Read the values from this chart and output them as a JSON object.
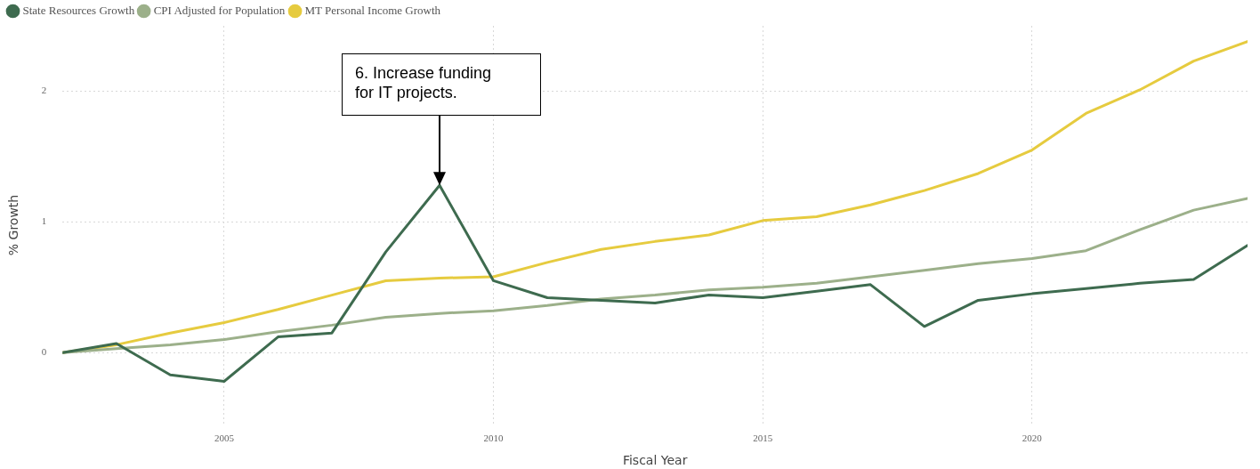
{
  "chart_data": {
    "type": "line",
    "xlabel": "Fiscal Year",
    "ylabel": "% Growth",
    "x": [
      2002,
      2003,
      2004,
      2005,
      2006,
      2007,
      2008,
      2009,
      2010,
      2011,
      2012,
      2013,
      2014,
      2015,
      2016,
      2017,
      2018,
      2019,
      2020,
      2021,
      2022,
      2023,
      2024
    ],
    "series": [
      {
        "name": "State Resources Growth",
        "color": "#3e6b4f",
        "values": [
          0,
          0.07,
          -0.17,
          -0.22,
          0.12,
          0.15,
          0.77,
          1.28,
          0.55,
          0.42,
          0.4,
          0.38,
          0.44,
          0.42,
          0.47,
          0.52,
          0.2,
          0.4,
          0.45,
          0.49,
          0.53,
          0.56,
          0.82
        ]
      },
      {
        "name": "CPI Adjusted for Population",
        "color": "#9cb08a",
        "values": [
          0,
          0.03,
          0.06,
          0.1,
          0.16,
          0.21,
          0.27,
          0.3,
          0.32,
          0.36,
          0.41,
          0.44,
          0.48,
          0.5,
          0.53,
          0.58,
          0.63,
          0.68,
          0.72,
          0.78,
          0.94,
          1.09,
          1.18
        ]
      },
      {
        "name": "MT Personal Income Growth",
        "color": "#e6cb3f",
        "values": [
          0,
          0.06,
          0.15,
          0.23,
          0.33,
          0.44,
          0.55,
          0.57,
          0.58,
          0.69,
          0.79,
          0.85,
          0.9,
          1.01,
          1.04,
          1.13,
          1.24,
          1.37,
          1.55,
          1.83,
          2.01,
          2.23,
          2.38
        ]
      }
    ],
    "xlim": [
      2002,
      2024
    ],
    "xticks": [
      2005,
      2010,
      2015,
      2020
    ],
    "ylim": [
      -0.55,
      2.5
    ],
    "yticks": [
      0,
      1,
      2
    ],
    "grid": true,
    "legend": "top left",
    "marker": "none",
    "line_style": "solid",
    "annotations": [
      {
        "text": "6. Increase funding for IT projects.",
        "x": 2009,
        "y": 1.28
      }
    ]
  }
}
